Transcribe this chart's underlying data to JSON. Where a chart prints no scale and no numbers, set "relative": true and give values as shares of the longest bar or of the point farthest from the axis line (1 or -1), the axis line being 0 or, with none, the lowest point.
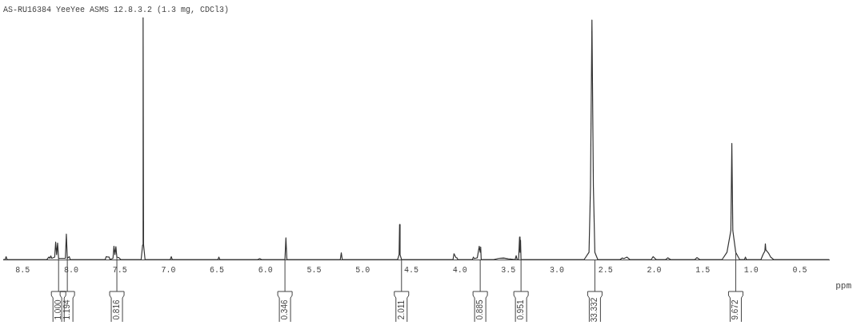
{
  "chart_data": {
    "type": "line",
    "title": "AS-RU16384 YeeYee ASMS 12.8.3.2 (1.3 mg, CDCl3)",
    "xlabel": "ppm",
    "relative": true,
    "marker": "none",
    "line_style": "solid",
    "legend": false,
    "xlim": [
      8.7,
      0.2
    ],
    "xticks": [
      8.5,
      {
        "value": 8,
        "label": "8.0"
      },
      7.5,
      {
        "value": 7,
        "label": "7.0"
      },
      6.5,
      {
        "value": 6,
        "label": "6.0"
      },
      5.5,
      {
        "value": 5,
        "label": "5.0"
      },
      4.5,
      {
        "value": 4,
        "label": "4.0"
      },
      3.5,
      {
        "value": 3,
        "label": "3.0"
      },
      2.5,
      {
        "value": 2,
        "label": "2.0"
      },
      1.5,
      {
        "value": 1,
        "label": "1.0"
      },
      0.5
    ],
    "annotations": [
      {
        "text": "1.000",
        "x": 8.13,
        "y": 0.005
      },
      {
        "text": "1.194",
        "x": 8.04,
        "y": 0.005
      },
      {
        "text": "0.816",
        "x": 7.53,
        "y": 0.01
      },
      {
        "text": "0.346",
        "x": 5.8,
        "y": 0
      },
      {
        "text": "2.011",
        "x": 4.6,
        "y": 0
      },
      {
        "text": "0.885",
        "x": 3.79,
        "y": 0
      },
      {
        "text": "0.951",
        "x": 3.37,
        "y": 0
      },
      {
        "text": "33.332",
        "x": 2.61,
        "y": 0
      },
      {
        "text": "9.672",
        "x": 1.16,
        "y": 0.03
      }
    ],
    "series": [
      {
        "color": "#333333",
        "x": [
          8.7,
          8.68,
          8.67,
          8.66,
          8.25,
          8.23,
          8.22,
          8.21,
          8.2,
          8.17,
          8.16,
          8.15,
          8.14,
          8.13,
          8.06,
          8.05,
          8.04,
          8.02,
          8.01,
          7.65,
          7.64,
          7.62,
          7.61,
          7.6,
          7.57,
          7.56,
          7.55,
          7.54,
          7.53,
          7.51,
          7.49,
          7.28,
          7.265,
          7.26,
          7.255,
          7.24,
          6.98,
          6.97,
          6.96,
          6.49,
          6.48,
          6.47,
          6.08,
          6.06,
          6.04,
          5.8,
          5.79,
          5.78,
          5.23,
          5.22,
          5.21,
          4.64,
          4.625,
          4.62,
          4.615,
          4.6,
          4.07,
          4.06,
          4.04,
          4.03,
          4.02,
          3.87,
          3.86,
          3.85,
          3.82,
          3.8,
          3.79,
          3.785,
          3.78,
          3.77,
          3.65,
          3.6,
          3.55,
          3.5,
          3.43,
          3.42,
          3.41,
          3.395,
          3.385,
          3.38,
          3.375,
          3.37,
          2.72,
          2.67,
          2.655,
          2.64,
          2.625,
          2.61,
          2.58,
          2.35,
          2.33,
          2.31,
          2.28,
          2.25,
          2.03,
          2.01,
          1.98,
          1.88,
          1.86,
          1.83,
          1.58,
          1.56,
          1.53,
          1.3,
          1.25,
          1.21,
          1.2,
          1.19,
          1.16,
          1.12,
          1.07,
          1.06,
          1.05,
          0.9,
          0.88,
          0.86,
          0.855,
          0.85,
          0.82,
          0.8,
          0.77,
          0.2
        ],
        "values": [
          0,
          0,
          0.012,
          0,
          0,
          0.01,
          0.005,
          0.015,
          0.005,
          0.01,
          0.072,
          0.02,
          0.068,
          0.005,
          0.005,
          0.105,
          0.005,
          0.012,
          0,
          0,
          0.012,
          0.01,
          0.01,
          0,
          0.005,
          0.055,
          0.02,
          0.053,
          0.01,
          0.008,
          0,
          0,
          0.06,
          1,
          0.06,
          0,
          0,
          0.012,
          0,
          0,
          0.01,
          0,
          0,
          0.004,
          0,
          0,
          0.09,
          0,
          0,
          0.028,
          0,
          0,
          0.02,
          0.145,
          0.02,
          0,
          0,
          0.024,
          0.008,
          0.007,
          0,
          0,
          0.01,
          0.004,
          0.007,
          0.055,
          0.03,
          0.052,
          0,
          0,
          0,
          0.005,
          0.006,
          0.003,
          0,
          0.016,
          0,
          0,
          0.093,
          0.03,
          0.08,
          0,
          0,
          0.03,
          0.3,
          0.99,
          0.3,
          0.03,
          0,
          0,
          0.006,
          0.004,
          0.01,
          0,
          0,
          0.012,
          0,
          0,
          0.007,
          0,
          0,
          0.008,
          0,
          0,
          0.03,
          0.12,
          0.48,
          0.12,
          0.03,
          0,
          0,
          0.01,
          0,
          0,
          0.02,
          0.035,
          0.065,
          0.04,
          0.025,
          0.01,
          0,
          0
        ]
      }
    ]
  }
}
